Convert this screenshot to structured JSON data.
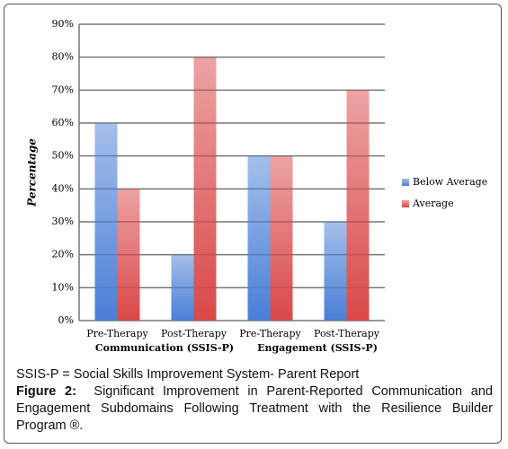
{
  "chart_data": {
    "type": "bar",
    "categories": [
      "Pre-Therapy",
      "Post-Therapy",
      "Pre-Therapy",
      "Post-Therapy"
    ],
    "groups": [
      "Communication (SSIS-P)",
      "Engagement (SSIS-P)"
    ],
    "y_label": "Percentage",
    "series": [
      {
        "name": "Below Average",
        "color": "#4a7fd6",
        "values": [
          60,
          20,
          50,
          30
        ]
      },
      {
        "name": "Average",
        "color": "#d94848",
        "values": [
          40,
          80,
          50,
          70
        ]
      }
    ],
    "ylim": [
      0,
      90
    ],
    "yticks": [
      {
        "value": 0,
        "label": "0%"
      },
      {
        "value": 10,
        "label": "10%"
      },
      {
        "value": 20,
        "label": "20%"
      },
      {
        "value": 30,
        "label": "30%"
      },
      {
        "value": 40,
        "label": "40%"
      },
      {
        "value": 50,
        "label": "50%"
      },
      {
        "value": 60,
        "label": "60%"
      },
      {
        "value": 70,
        "label": "70%"
      },
      {
        "value": 80,
        "label": "80%"
      },
      {
        "value": 90,
        "label": "90%"
      }
    ],
    "grid": true,
    "legend": "right"
  },
  "caption": {
    "note": "SSIS-P = Social Skills Improvement System- Parent Report",
    "figure_label": "Figure 2:",
    "text": "Significant Improvement in Parent-Reported Communication and Engagement Subdomains Following Treatment with the Resilience Builder Program ®."
  }
}
